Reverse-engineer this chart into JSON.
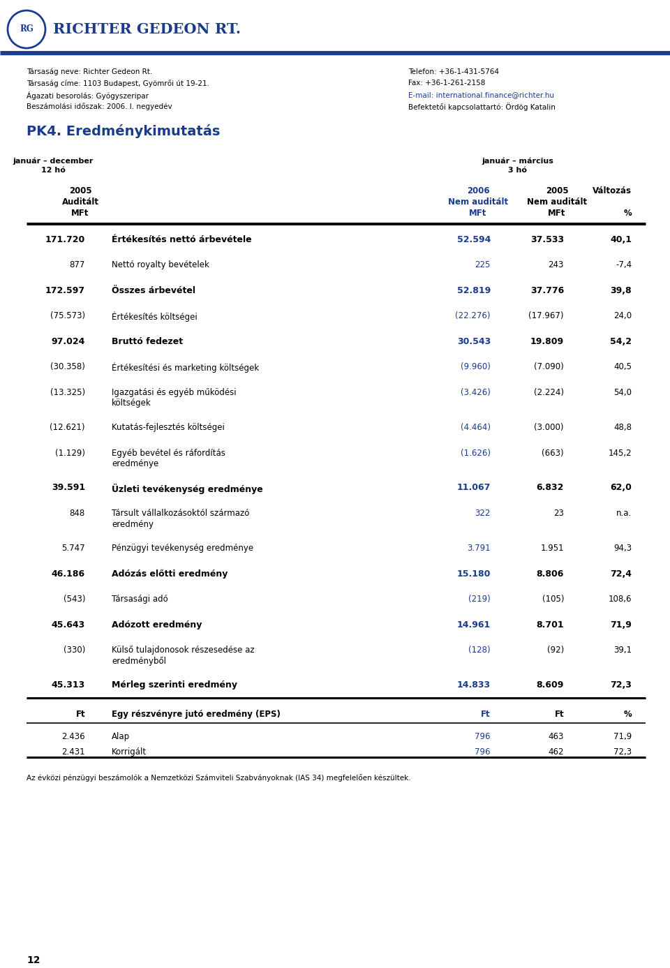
{
  "page_bg": "#ffffff",
  "logo_text": "RICHTER GEDEON RT.",
  "logo_color": "#1a3a8c",
  "header_left": [
    "Társaság neve: Richter Gedeon Rt.",
    "Társaság címe: 1103 Budapest, Gyömrői út 19-21.",
    "Ágazati besorolás: Gyógyszeripar",
    "Beszámolási időszak: 2006. I. negyedév"
  ],
  "header_right": [
    "Telefon: +36-1-431-5764",
    "Fax: +36-1-261-2158",
    "E-mail: international.finance@richter.hu",
    "Befektetői kapcsolattartó: Ördög Katalin"
  ],
  "title": "PK4. Eredménykimutatás",
  "rows": [
    {
      "col0": "171.720",
      "col1": "Értékesítés nettó árbevétele",
      "col2": "52.594",
      "col3": "37.533",
      "col4": "40,1",
      "bold": true,
      "multiline": false
    },
    {
      "col0": "877",
      "col1": "Nettó royalty bevételek",
      "col2": "225",
      "col3": "243",
      "col4": "-7,4",
      "bold": false,
      "multiline": false
    },
    {
      "col0": "172.597",
      "col1": "Összes árbevétel",
      "col2": "52.819",
      "col3": "37.776",
      "col4": "39,8",
      "bold": true,
      "multiline": false
    },
    {
      "col0": "(75.573)",
      "col1": "Értékesítés költségei",
      "col2": "(22.276)",
      "col3": "(17.967)",
      "col4": "24,0",
      "bold": false,
      "multiline": false
    },
    {
      "col0": "97.024",
      "col1": "Bruttó fedezet",
      "col2": "30.543",
      "col3": "19.809",
      "col4": "54,2",
      "bold": true,
      "multiline": false
    },
    {
      "col0": "(30.358)",
      "col1": "Értékesítési és marketing költségek",
      "col2": "(9.960)",
      "col3": "(7.090)",
      "col4": "40,5",
      "bold": false,
      "multiline": false
    },
    {
      "col0": "(13.325)",
      "col1": "Igazgatási és egyéb működési költségek",
      "col2": "(3.426)",
      "col3": "(2.224)",
      "col4": "54,0",
      "bold": false,
      "multiline": true
    },
    {
      "col0": "(12.621)",
      "col1": "Kutatás-fejlesztés költségei",
      "col2": "(4.464)",
      "col3": "(3.000)",
      "col4": "48,8",
      "bold": false,
      "multiline": false
    },
    {
      "col0": "(1.129)",
      "col1": "Egyéb bevétel és ráfordítás eredménye",
      "col2": "(1.626)",
      "col3": "(663)",
      "col4": "145,2",
      "bold": false,
      "multiline": true
    },
    {
      "col0": "39.591",
      "col1": "Üzleti tevékenység eredménye",
      "col2": "11.067",
      "col3": "6.832",
      "col4": "62,0",
      "bold": true,
      "multiline": false
    },
    {
      "col0": "848",
      "col1": "Társult vállalkozásoktól származó eredmény",
      "col2": "322",
      "col3": "23",
      "col4": "n.a.",
      "bold": false,
      "multiline": true
    },
    {
      "col0": "5.747",
      "col1": "Pénzügyi tevékenység eredménye",
      "col2": "3.791",
      "col3": "1.951",
      "col4": "94,3",
      "bold": false,
      "multiline": false
    },
    {
      "col0": "46.186",
      "col1": "Adózás előtti eredmény",
      "col2": "15.180",
      "col3": "8.806",
      "col4": "72,4",
      "bold": true,
      "multiline": false
    },
    {
      "col0": "(543)",
      "col1": "Társasági adó",
      "col2": "(219)",
      "col3": "(105)",
      "col4": "108,6",
      "bold": false,
      "multiline": false
    },
    {
      "col0": "45.643",
      "col1": "Adózott eredmény",
      "col2": "14.961",
      "col3": "8.701",
      "col4": "71,9",
      "bold": true,
      "multiline": false
    },
    {
      "col0": "(330)",
      "col1": "Külső tulajdonosok részesedése az eredményből",
      "col2": "(128)",
      "col3": "(92)",
      "col4": "39,1",
      "bold": false,
      "multiline": true
    },
    {
      "col0": "45.313",
      "col1": "Mérleg szerinti eredmény",
      "col2": "14.833",
      "col3": "8.609",
      "col4": "72,3",
      "bold": true,
      "multiline": false
    }
  ],
  "eps_rows": [
    {
      "col0": "Ft",
      "col1": "Egy részvényre jutó eredmény (EPS)",
      "col2": "Ft",
      "col3": "Ft",
      "col4": "%",
      "bold": true,
      "col2_blue": true
    },
    {
      "col0": "2.436",
      "col1": "Alap",
      "col2": "796",
      "col3": "463",
      "col4": "71,9",
      "bold": false,
      "col2_blue": true
    },
    {
      "col0": "2.431",
      "col1": "Korrigált",
      "col2": "796",
      "col3": "462",
      "col4": "72,3",
      "bold": false,
      "col2_blue": true
    }
  ],
  "footer": "Az évközi pénzügyi beszámolók a Nemzetközi Számviteli Szabványoknak (IAS 34) megfelelően készültek.",
  "page_number": "12",
  "blue_color": "#1a3a8c",
  "black_color": "#000000"
}
